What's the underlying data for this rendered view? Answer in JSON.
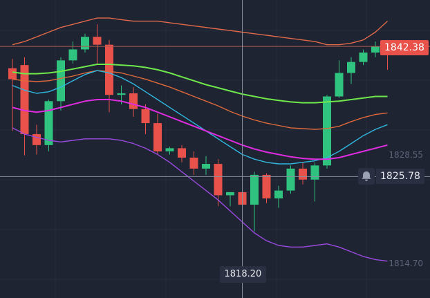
{
  "chart_data": {
    "type": "candlestick",
    "ylim": [
      1810.3,
      1848.3
    ],
    "grid": true,
    "y_ticks": [
      1814.7,
      1828.55
    ],
    "tick_labels": [
      "1814.70",
      "1828.55"
    ],
    "current_price": "1842.38",
    "cursor_price": "1825.78",
    "cursor_time_label": "1818.20",
    "colors": {
      "up": "#2fc37f",
      "down": "#e8524a",
      "background": "#1f2433",
      "ma_green": "#6ee84a",
      "ma_orange": "#e06a3a",
      "ma_cyan": "#2fb8e0",
      "ma_magenta": "#e02ce0",
      "band_upper": "#e06a4a",
      "band_lower": "#9a4ae0"
    },
    "candles": [
      {
        "o": 1839.6,
        "h": 1840.8,
        "l": 1831.6,
        "c": 1838.2
      },
      {
        "o": 1840.0,
        "h": 1841.0,
        "l": 1828.5,
        "c": 1831.2
      },
      {
        "o": 1831.2,
        "h": 1832.4,
        "l": 1828.6,
        "c": 1829.8
      },
      {
        "o": 1829.8,
        "h": 1835.6,
        "l": 1829.0,
        "c": 1835.4
      },
      {
        "o": 1835.4,
        "h": 1841.0,
        "l": 1834.2,
        "c": 1840.6
      },
      {
        "o": 1840.6,
        "h": 1843.0,
        "l": 1840.2,
        "c": 1842.0
      },
      {
        "o": 1842.0,
        "h": 1844.0,
        "l": 1841.6,
        "c": 1843.6
      },
      {
        "o": 1843.6,
        "h": 1845.2,
        "l": 1840.0,
        "c": 1842.6
      },
      {
        "o": 1842.6,
        "h": 1843.2,
        "l": 1834.0,
        "c": 1836.2
      },
      {
        "o": 1836.2,
        "h": 1837.4,
        "l": 1835.0,
        "c": 1836.4
      },
      {
        "o": 1836.4,
        "h": 1837.2,
        "l": 1833.4,
        "c": 1834.4
      },
      {
        "o": 1834.4,
        "h": 1835.0,
        "l": 1831.2,
        "c": 1832.6
      },
      {
        "o": 1832.6,
        "h": 1833.8,
        "l": 1828.6,
        "c": 1829.0
      },
      {
        "o": 1829.0,
        "h": 1829.6,
        "l": 1828.6,
        "c": 1829.4
      },
      {
        "o": 1829.4,
        "h": 1829.8,
        "l": 1827.6,
        "c": 1828.2
      },
      {
        "o": 1828.2,
        "h": 1829.0,
        "l": 1826.0,
        "c": 1826.8
      },
      {
        "o": 1826.8,
        "h": 1828.4,
        "l": 1826.0,
        "c": 1827.4
      },
      {
        "o": 1827.4,
        "h": 1828.0,
        "l": 1822.0,
        "c": 1823.4
      },
      {
        "o": 1823.4,
        "h": 1823.8,
        "l": 1822.0,
        "c": 1823.8
      },
      {
        "o": 1823.8,
        "h": 1824.2,
        "l": 1819.6,
        "c": 1822.2
      },
      {
        "o": 1822.2,
        "h": 1826.4,
        "l": 1818.8,
        "c": 1826.0
      },
      {
        "o": 1826.0,
        "h": 1826.2,
        "l": 1822.4,
        "c": 1823.0
      },
      {
        "o": 1823.0,
        "h": 1824.6,
        "l": 1821.8,
        "c": 1824.0
      },
      {
        "o": 1824.0,
        "h": 1827.2,
        "l": 1823.6,
        "c": 1826.8
      },
      {
        "o": 1826.8,
        "h": 1827.6,
        "l": 1824.8,
        "c": 1825.4
      },
      {
        "o": 1825.4,
        "h": 1827.6,
        "l": 1822.6,
        "c": 1827.2
      },
      {
        "o": 1827.2,
        "h": 1836.2,
        "l": 1826.8,
        "c": 1836.0
      },
      {
        "o": 1836.0,
        "h": 1840.6,
        "l": 1835.8,
        "c": 1839.0
      },
      {
        "o": 1839.0,
        "h": 1841.0,
        "l": 1837.6,
        "c": 1840.4
      },
      {
        "o": 1840.4,
        "h": 1842.0,
        "l": 1840.0,
        "c": 1841.6
      },
      {
        "o": 1841.6,
        "h": 1843.0,
        "l": 1841.0,
        "c": 1842.4
      },
      {
        "o": 1842.4,
        "h": 1843.2,
        "l": 1839.4,
        "c": 1841.6
      }
    ],
    "series": [
      {
        "color_key": "ma_green",
        "values": [
          1839.1,
          1838.9,
          1838.9,
          1839.0,
          1839.2,
          1839.5,
          1839.8,
          1840.1,
          1840.1,
          1840.0,
          1839.9,
          1839.7,
          1839.4,
          1839.0,
          1838.5,
          1838.0,
          1837.5,
          1837.1,
          1836.7,
          1836.3,
          1836.0,
          1835.7,
          1835.5,
          1835.3,
          1835.2,
          1835.2,
          1835.3,
          1835.4,
          1835.6,
          1835.8,
          1836.0,
          1836.0
        ]
      },
      {
        "color_key": "ma_orange",
        "values": [
          1838.2,
          1838.0,
          1837.9,
          1838.0,
          1838.3,
          1838.6,
          1839.0,
          1839.3,
          1839.2,
          1839.0,
          1838.6,
          1838.2,
          1837.7,
          1837.2,
          1836.6,
          1836.0,
          1835.4,
          1834.8,
          1834.1,
          1833.5,
          1833.0,
          1832.6,
          1832.3,
          1832.0,
          1831.9,
          1831.8,
          1831.9,
          1832.2,
          1832.8,
          1833.3,
          1833.7,
          1833.9
        ]
      },
      {
        "color_key": "ma_cyan",
        "values": [
          1837.4,
          1836.8,
          1836.4,
          1836.6,
          1837.2,
          1838.0,
          1838.8,
          1839.3,
          1839.0,
          1838.4,
          1837.6,
          1836.6,
          1835.6,
          1834.6,
          1833.6,
          1832.6,
          1831.6,
          1830.6,
          1829.6,
          1828.6,
          1828.0,
          1827.6,
          1827.4,
          1827.4,
          1827.6,
          1827.8,
          1828.2,
          1829.0,
          1830.0,
          1831.0,
          1831.8,
          1832.4
        ]
      },
      {
        "color_key": "ma_magenta",
        "values": [
          1834.6,
          1834.2,
          1834.0,
          1834.2,
          1834.6,
          1835.0,
          1835.4,
          1835.6,
          1835.6,
          1835.4,
          1835.0,
          1834.6,
          1834.0,
          1833.4,
          1832.8,
          1832.2,
          1831.6,
          1831.0,
          1830.4,
          1829.8,
          1829.3,
          1828.9,
          1828.6,
          1828.3,
          1828.1,
          1828.0,
          1828.0,
          1828.2,
          1828.6,
          1829.0,
          1829.4,
          1829.8
        ]
      },
      {
        "color_key": "band_upper",
        "values": [
          1842.6,
          1843.0,
          1843.6,
          1844.2,
          1844.8,
          1845.2,
          1845.6,
          1846.0,
          1846.0,
          1845.8,
          1845.6,
          1845.6,
          1845.6,
          1845.4,
          1845.2,
          1845.0,
          1844.8,
          1844.6,
          1844.4,
          1844.2,
          1844.0,
          1843.8,
          1843.6,
          1843.4,
          1843.2,
          1843.0,
          1842.6,
          1842.6,
          1842.8,
          1843.2,
          1844.2,
          1845.6
        ]
      },
      {
        "color_key": "band_lower",
        "values": [
          1832.0,
          1831.2,
          1830.8,
          1830.4,
          1830.2,
          1830.4,
          1830.6,
          1830.6,
          1830.6,
          1830.4,
          1830.0,
          1829.4,
          1828.6,
          1827.6,
          1826.4,
          1825.2,
          1824.0,
          1822.8,
          1821.4,
          1820.0,
          1818.6,
          1817.6,
          1817.0,
          1816.8,
          1816.8,
          1817.0,
          1817.2,
          1816.8,
          1816.2,
          1815.6,
          1815.2,
          1815.0
        ]
      }
    ]
  }
}
